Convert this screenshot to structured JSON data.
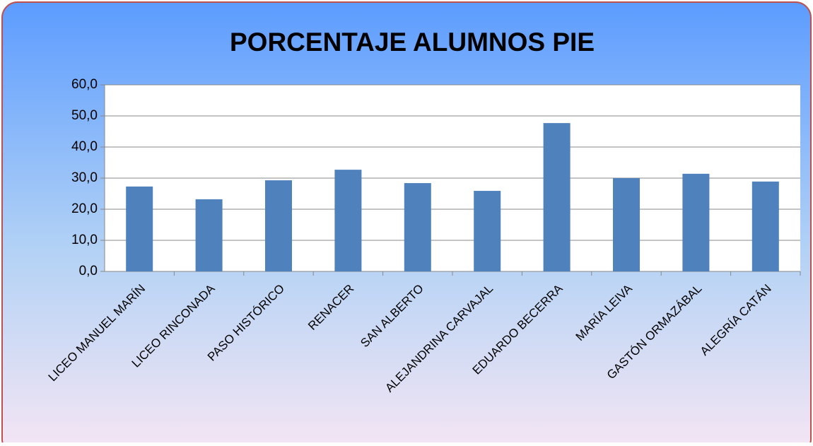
{
  "chart_data": {
    "type": "bar",
    "title": "PORCENTAJE ALUMNOS PIE",
    "categories": [
      "LICEO MANUEL MARÍN",
      "LICEO RINCONADA",
      "PASO HISTÓRICO",
      "RENACER",
      "SAN ALBERTO",
      "ALEJANDRINA CARVAJAL",
      "EDUARDO BECERRA",
      "MARÍA LEIVA",
      "GASTÓN ORMAZÁBAL",
      "ALEGRÍA CATÁN"
    ],
    "values": [
      27.3,
      23.2,
      29.3,
      32.7,
      28.4,
      25.9,
      47.7,
      30.0,
      31.4,
      28.9
    ],
    "color": "#4f81bd",
    "ylim": [
      0,
      60
    ],
    "yticks": [
      {
        "value": 0,
        "label": "0,0"
      },
      {
        "value": 10,
        "label": "10,0"
      },
      {
        "value": 20,
        "label": "20,0"
      },
      {
        "value": 30,
        "label": "30,0"
      },
      {
        "value": 40,
        "label": "40,0"
      },
      {
        "value": 50,
        "label": "50,0"
      },
      {
        "value": 60,
        "label": "60,0"
      }
    ],
    "grid": true
  }
}
